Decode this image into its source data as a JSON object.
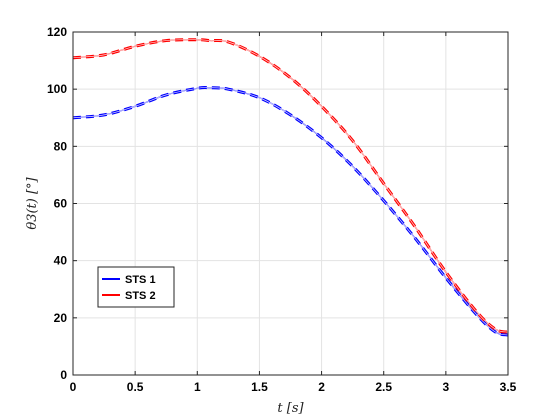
{
  "chart_data": {
    "type": "line",
    "title": "",
    "xlabel": "t [s]",
    "ylabel": "θ3(t) [°]",
    "xlim": [
      0,
      3.5
    ],
    "ylim": [
      0,
      120
    ],
    "x_ticks": [
      0,
      0.5,
      1,
      1.5,
      2,
      2.5,
      3,
      3.5
    ],
    "y_ticks": [
      0,
      20,
      40,
      60,
      80,
      100,
      120
    ],
    "x_tick_labels": [
      "0",
      "0.5",
      "1",
      "1.5",
      "2",
      "2.5",
      "3",
      "3.5"
    ],
    "y_tick_labels": [
      "0",
      "20",
      "40",
      "60",
      "80",
      "100",
      "120"
    ],
    "grid": true,
    "legend_position": "lower-left",
    "x": [
      0,
      0.25,
      0.5,
      0.75,
      1.0,
      1.1,
      1.25,
      1.5,
      1.75,
      2.0,
      2.25,
      2.5,
      2.75,
      3.0,
      3.25,
      3.4,
      3.5
    ],
    "series": [
      {
        "name": "STS 1",
        "color": "#0000ff",
        "style": "dashed",
        "values": [
          90,
          91,
          94,
          98,
          100.3,
          100.5,
          100.0,
          97,
          91,
          83,
          73,
          61,
          48,
          34,
          21,
          15,
          14
        ]
      },
      {
        "name": "STS 2",
        "color": "#ff0000",
        "style": "dashed",
        "values": [
          111,
          112,
          115,
          117,
          117.3,
          117.0,
          116.5,
          111.5,
          104,
          94,
          82,
          67,
          52,
          36,
          22,
          16,
          15
        ]
      }
    ]
  }
}
